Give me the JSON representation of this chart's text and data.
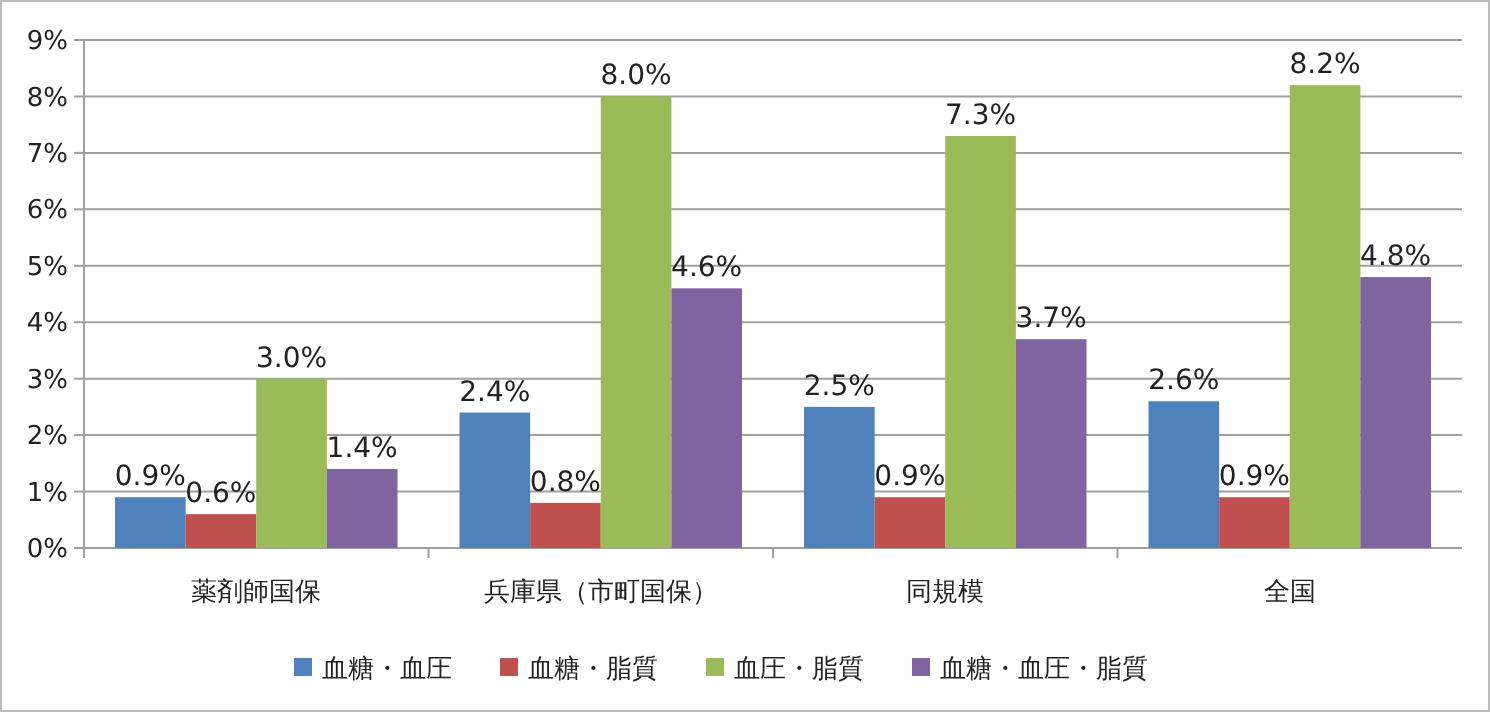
{
  "chart_data": {
    "type": "bar",
    "categories": [
      "薬剤師国保",
      "兵庫県（市町国保）",
      "同規模",
      "全国"
    ],
    "series": [
      {
        "name": "血糖・血圧",
        "color": "#4f81bd",
        "values": [
          0.9,
          2.4,
          2.5,
          2.6
        ],
        "value_labels": [
          "0.9%",
          "2.4%",
          "2.5%",
          "2.6%"
        ]
      },
      {
        "name": "血糖・脂質",
        "color": "#c0504d",
        "values": [
          0.6,
          0.8,
          0.9,
          0.9
        ],
        "value_labels": [
          "0.6%",
          "0.8%",
          "0.9%",
          "0.9%"
        ]
      },
      {
        "name": "血圧・脂質",
        "color": "#9bbb59",
        "values": [
          3.0,
          8.0,
          7.3,
          8.2
        ],
        "value_labels": [
          "3.0%",
          "8.0%",
          "7.3%",
          "8.2%"
        ]
      },
      {
        "name": "血糖・血圧・脂質",
        "color": "#8064a2",
        "values": [
          1.4,
          4.6,
          3.7,
          4.8
        ],
        "value_labels": [
          "1.4%",
          "4.6%",
          "3.7%",
          "4.8%"
        ]
      }
    ],
    "ylim": [
      0,
      9
    ],
    "yticks": [
      {
        "value": 0,
        "label": "0%"
      },
      {
        "value": 1,
        "label": "1%"
      },
      {
        "value": 2,
        "label": "2%"
      },
      {
        "value": 3,
        "label": "3%"
      },
      {
        "value": 4,
        "label": "4%"
      },
      {
        "value": 5,
        "label": "5%"
      },
      {
        "value": 6,
        "label": "6%"
      },
      {
        "value": 7,
        "label": "7%"
      },
      {
        "value": 8,
        "label": "8%"
      },
      {
        "value": 9,
        "label": "9%"
      }
    ],
    "grid": "y",
    "legend": "bottom"
  }
}
